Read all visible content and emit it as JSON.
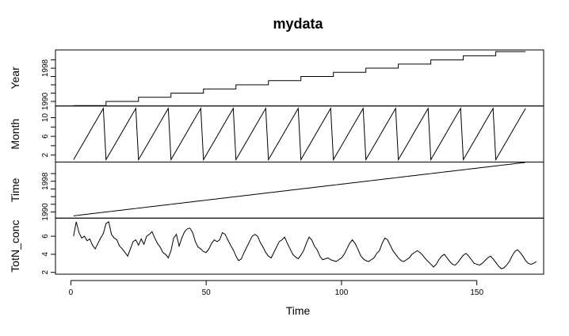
{
  "chart_data": {
    "type": "line",
    "title": "mydata",
    "xlabel": "Time",
    "xlim": [
      1,
      168
    ],
    "x_ticks": [
      {
        "value": 0,
        "label": "0"
      },
      {
        "value": 50,
        "label": "50"
      },
      {
        "value": 100,
        "label": "100"
      },
      {
        "value": 150,
        "label": "150"
      }
    ],
    "panels": [
      {
        "name": "Year",
        "ylim": [
          1988.9,
          2002.4
        ],
        "ticks": [
          {
            "value": 1990,
            "label": "1990"
          },
          {
            "value": 1992,
            "label": ""
          },
          {
            "value": 1994,
            "label": ""
          },
          {
            "value": 1996,
            "label": ""
          },
          {
            "value": 1998,
            "label": "1998"
          },
          {
            "value": 2000,
            "label": ""
          }
        ],
        "series": {
          "kind": "year",
          "start": 1989
        }
      },
      {
        "name": "Month",
        "ylim": [
          0.5,
          12.5
        ],
        "ticks": [
          {
            "value": 2,
            "label": "2"
          },
          {
            "value": 4,
            "label": ""
          },
          {
            "value": 6,
            "label": "6"
          },
          {
            "value": 8,
            "label": ""
          },
          {
            "value": 10,
            "label": "10"
          }
        ],
        "series": {
          "kind": "month"
        }
      },
      {
        "name": "Time",
        "ylim": [
          1988.4,
          2003.0
        ],
        "ticks": [
          {
            "value": 1990,
            "label": "1990"
          },
          {
            "value": 1992,
            "label": ""
          },
          {
            "value": 1994,
            "label": ""
          },
          {
            "value": 1996,
            "label": ""
          },
          {
            "value": 1998,
            "label": "1998"
          },
          {
            "value": 2000,
            "label": ""
          }
        ],
        "series": {
          "kind": "time",
          "start": 1989.0,
          "step": 0.0833
        }
      },
      {
        "name": "TotN_conc",
        "ylim": [
          1.8,
          8.0
        ],
        "ticks": [
          {
            "value": 2,
            "label": "2"
          },
          {
            "value": 4,
            "label": "4"
          },
          {
            "value": 6,
            "label": "6"
          }
        ],
        "series": {
          "kind": "values",
          "y": [
            6.0,
            7.6,
            6.4,
            5.8,
            6.0,
            5.5,
            5.7,
            5.0,
            4.6,
            5.2,
            5.8,
            6.3,
            7.4,
            7.6,
            6.2,
            5.8,
            5.6,
            4.9,
            4.6,
            4.2,
            3.8,
            4.6,
            5.4,
            5.6,
            5.0,
            5.7,
            5.1,
            6.0,
            6.2,
            6.5,
            5.8,
            5.2,
            4.8,
            4.2,
            4.0,
            3.6,
            4.4,
            5.8,
            6.2,
            4.9,
            5.8,
            6.5,
            6.8,
            6.9,
            6.4,
            5.4,
            4.8,
            4.6,
            4.3,
            4.2,
            4.6,
            5.2,
            5.6,
            5.4,
            5.6,
            6.4,
            6.2,
            5.6,
            5.0,
            4.5,
            3.8,
            3.3,
            3.5,
            4.2,
            4.8,
            5.4,
            6.0,
            6.2,
            6.0,
            5.3,
            4.8,
            4.2,
            3.8,
            3.6,
            4.2,
            4.8,
            5.4,
            5.6,
            5.9,
            5.2,
            4.6,
            4.0,
            3.7,
            3.5,
            3.9,
            4.4,
            5.2,
            5.9,
            5.6,
            4.9,
            4.5,
            3.8,
            3.4,
            3.5,
            3.6,
            3.4,
            3.3,
            3.2,
            3.4,
            3.6,
            4.0,
            4.6,
            5.2,
            5.6,
            5.2,
            4.6,
            3.9,
            3.5,
            3.3,
            3.2,
            3.4,
            3.6,
            4.1,
            4.4,
            5.2,
            5.8,
            5.6,
            5.0,
            4.4,
            4.0,
            3.6,
            3.3,
            3.2,
            3.4,
            3.6,
            4.0,
            4.2,
            4.4,
            4.2,
            3.9,
            3.5,
            3.2,
            2.9,
            2.6,
            2.9,
            3.4,
            3.8,
            4.0,
            3.6,
            3.2,
            2.9,
            2.8,
            3.1,
            3.5,
            3.9,
            4.1,
            3.8,
            3.4,
            3.0,
            2.9,
            2.8,
            3.0,
            3.3,
            3.6,
            3.8,
            3.5,
            3.1,
            2.7,
            2.4,
            2.5,
            2.8,
            3.2,
            3.8,
            4.3,
            4.5,
            4.2,
            3.8,
            3.3,
            3.0,
            2.9,
            3.0,
            3.2
          ]
        }
      }
    ]
  }
}
